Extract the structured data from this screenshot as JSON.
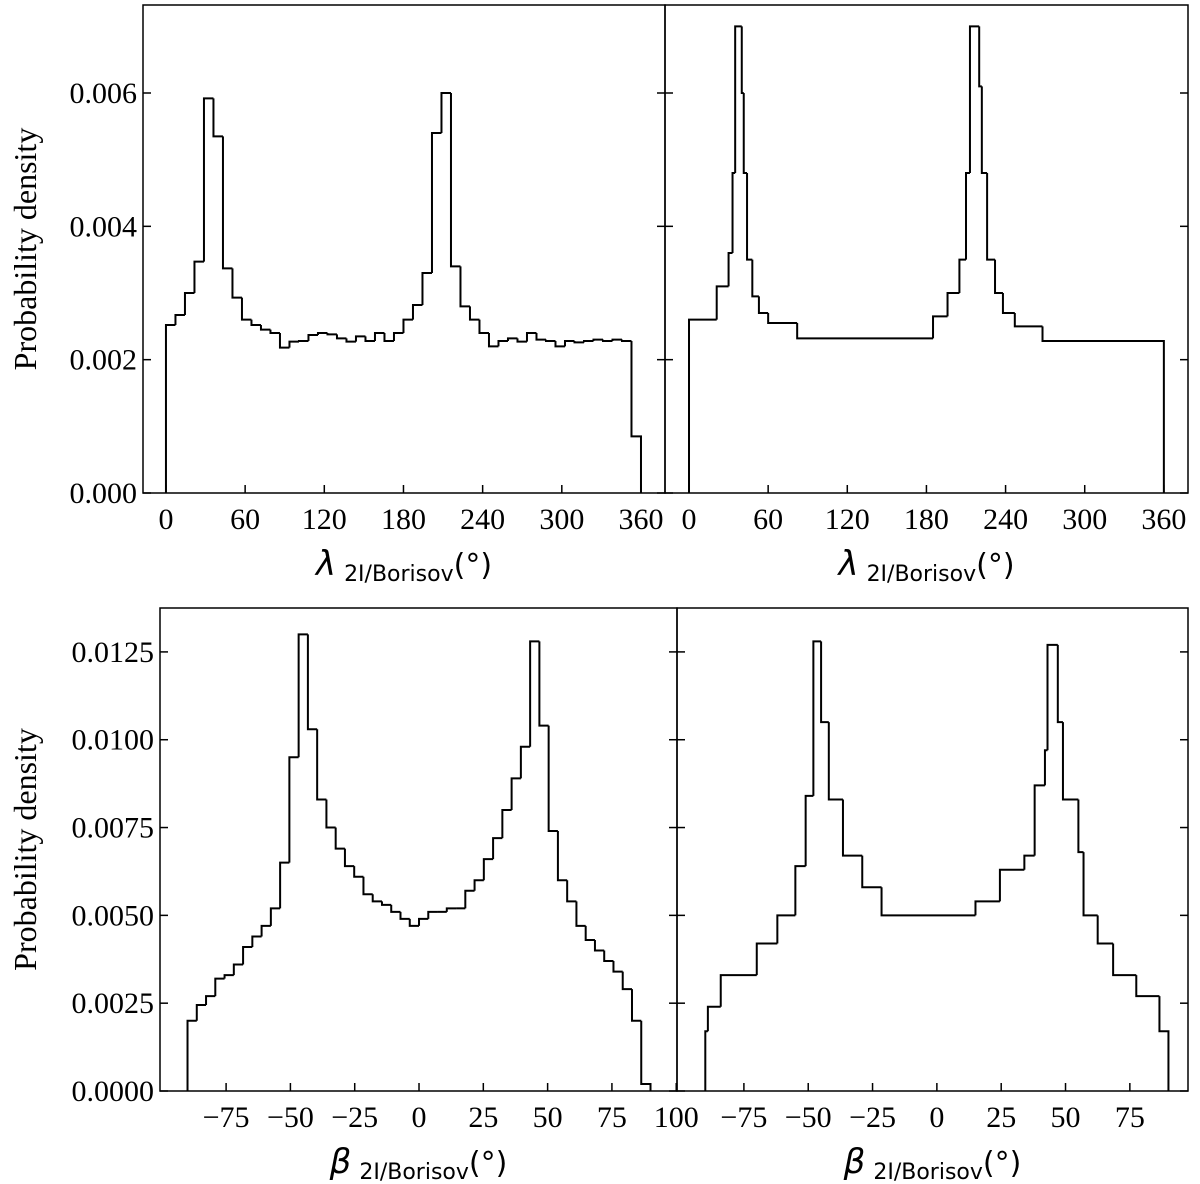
{
  "chart_data": [
    {
      "type": "histogram",
      "ylabel": "Probability density",
      "xlabel": {
        "symbol": "λ",
        "subscript": "2I/Borisov",
        "unit": "(°)"
      },
      "xlim": [
        -17.4,
        378.2
      ],
      "ylim": [
        0,
        0.00732
      ],
      "xticks": [
        0,
        60,
        120,
        180,
        240,
        300,
        360
      ],
      "yticks": [
        {
          "value": 0,
          "label": "0.000"
        },
        {
          "value": 0.002,
          "label": "0.002"
        },
        {
          "value": 0.004,
          "label": "0.004"
        },
        {
          "value": 0.006,
          "label": "0.006"
        }
      ],
      "color": "#000000",
      "bins": [
        0,
        7.2,
        14.4,
        21.6,
        28.8,
        36,
        43.2,
        50.4,
        57.6,
        64.8,
        72,
        79.2,
        86.4,
        93.6,
        100.8,
        108,
        115.2,
        122.4,
        129.6,
        136.8,
        144,
        151.2,
        158.4,
        165.6,
        172.8,
        180,
        187.2,
        194.4,
        201.6,
        208.8,
        216,
        223.2,
        230.4,
        237.6,
        244.8,
        252,
        259.2,
        266.4,
        273.6,
        280.8,
        288,
        295.2,
        302.4,
        309.6,
        316.8,
        324,
        331.2,
        338.4,
        345.6,
        352.8,
        360
      ],
      "values": [
        0.00252,
        0.00267,
        0.003,
        0.00347,
        0.00592,
        0.00535,
        0.00337,
        0.00293,
        0.0026,
        0.00252,
        0.00245,
        0.0024,
        0.00218,
        0.00227,
        0.00228,
        0.00237,
        0.0024,
        0.00238,
        0.00232,
        0.00227,
        0.00235,
        0.00228,
        0.0024,
        0.00228,
        0.0024,
        0.0026,
        0.00282,
        0.0033,
        0.0054,
        0.006,
        0.0034,
        0.0028,
        0.0026,
        0.0024,
        0.0022,
        0.00228,
        0.00232,
        0.00227,
        0.0024,
        0.0023,
        0.00228,
        0.0022,
        0.00228,
        0.00226,
        0.00228,
        0.0023,
        0.00228,
        0.0023,
        0.00228,
        0.00085
      ]
    },
    {
      "type": "histogram",
      "xlabel": {
        "symbol": "λ",
        "subscript": "2I/Borisov",
        "unit": "(°)"
      },
      "xlim": [
        -18.2,
        378.3
      ],
      "ylim": [
        0,
        0.00732
      ],
      "xticks": [
        0,
        60,
        120,
        180,
        240,
        300,
        360
      ],
      "yticks": [
        0,
        0.002,
        0.004,
        0.006
      ],
      "ytick_labels": false,
      "color": "#000000",
      "bins": [
        0,
        21,
        30,
        33,
        35,
        40,
        41.5,
        44,
        48,
        53,
        60,
        82,
        185,
        196,
        205,
        210,
        213,
        220,
        222,
        226,
        232,
        238,
        247,
        268,
        360
      ],
      "values": [
        0.0026,
        0.0031,
        0.0036,
        0.0048,
        0.007,
        0.006,
        0.0048,
        0.0035,
        0.00295,
        0.0027,
        0.00255,
        0.00232,
        0.00265,
        0.003,
        0.0035,
        0.0048,
        0.007,
        0.0061,
        0.0048,
        0.0035,
        0.003,
        0.0027,
        0.0025,
        0.00228
      ]
    },
    {
      "type": "histogram",
      "ylabel": "Probability density",
      "xlabel": {
        "symbol": "β",
        "subscript": "2I/Borisov",
        "unit": "(°)"
      },
      "xlim": [
        -100.7,
        100.3
      ],
      "ylim": [
        0,
        0.01375
      ],
      "xticks": [
        {
          "value": -75,
          "label": "−75"
        },
        {
          "value": -50,
          "label": "−50"
        },
        {
          "value": -25,
          "label": "−25"
        },
        0,
        25,
        50,
        75,
        100
      ],
      "yticks": [
        {
          "value": 0,
          "label": "0.0000"
        },
        {
          "value": 0.0025,
          "label": "0.0025"
        },
        {
          "value": 0.005,
          "label": "0.0050"
        },
        {
          "value": 0.0075,
          "label": "0.0075"
        },
        {
          "value": 0.01,
          "label": "0.0100"
        },
        {
          "value": 0.0125,
          "label": "0.0125"
        }
      ],
      "color": "#000000",
      "bins": [
        -90,
        -86.4,
        -82.8,
        -79.2,
        -75.6,
        -72,
        -68.4,
        -64.8,
        -61.2,
        -57.6,
        -54,
        -50.4,
        -46.8,
        -43.2,
        -39.6,
        -36,
        -32.4,
        -28.8,
        -25.2,
        -21.6,
        -18,
        -14.4,
        -10.8,
        -7.2,
        -3.6,
        0,
        3.6,
        7.2,
        10.8,
        14.4,
        18,
        21.6,
        25.2,
        28.8,
        32.4,
        36,
        39.6,
        43.2,
        46.8,
        50.4,
        54,
        57.6,
        61.2,
        64.8,
        68.4,
        72,
        75.6,
        79.2,
        82.8,
        86.4,
        90
      ],
      "values": [
        0.002,
        0.00245,
        0.0027,
        0.0032,
        0.0033,
        0.0036,
        0.0041,
        0.0044,
        0.0047,
        0.0052,
        0.0065,
        0.0095,
        0.013,
        0.0103,
        0.0083,
        0.0075,
        0.0069,
        0.0064,
        0.0061,
        0.0056,
        0.0054,
        0.0053,
        0.0051,
        0.0049,
        0.0047,
        0.0049,
        0.0051,
        0.0051,
        0.0052,
        0.0052,
        0.0057,
        0.006,
        0.0066,
        0.0072,
        0.008,
        0.0089,
        0.0098,
        0.0128,
        0.0104,
        0.0074,
        0.006,
        0.0054,
        0.0047,
        0.0043,
        0.004,
        0.0037,
        0.0034,
        0.0029,
        0.002,
        0.0002
      ]
    },
    {
      "type": "histogram",
      "xlabel": {
        "symbol": "β",
        "subscript": "2I/Borisov",
        "unit": "(°)"
      },
      "xlim": [
        -101,
        97.6
      ],
      "ylim": [
        0,
        0.01375
      ],
      "xticks": [
        {
          "value": -75,
          "label": "−75"
        },
        {
          "value": -50,
          "label": "−50"
        },
        {
          "value": -25,
          "label": "−25"
        },
        0,
        25,
        50,
        75
      ],
      "yticks": [
        0,
        0.0025,
        0.005,
        0.0075,
        0.01,
        0.0125
      ],
      "ytick_labels": false,
      "color": "#000000",
      "bins": [
        -90,
        -89,
        -84,
        -70,
        -62,
        -55,
        -51,
        -48,
        -45,
        -42,
        -36.5,
        -29,
        -21.5,
        15,
        24.5,
        34,
        38,
        42,
        43,
        47,
        49,
        55,
        57,
        62.5,
        68.5,
        77.5,
        86.5,
        90
      ],
      "values": [
        0.0017,
        0.0024,
        0.0033,
        0.0042,
        0.005,
        0.0064,
        0.0084,
        0.0128,
        0.0105,
        0.0083,
        0.0067,
        0.0058,
        0.005,
        0.0054,
        0.0063,
        0.0067,
        0.0087,
        0.0097,
        0.0127,
        0.0105,
        0.0083,
        0.0068,
        0.005,
        0.0042,
        0.0033,
        0.0027,
        0.0017
      ]
    }
  ]
}
